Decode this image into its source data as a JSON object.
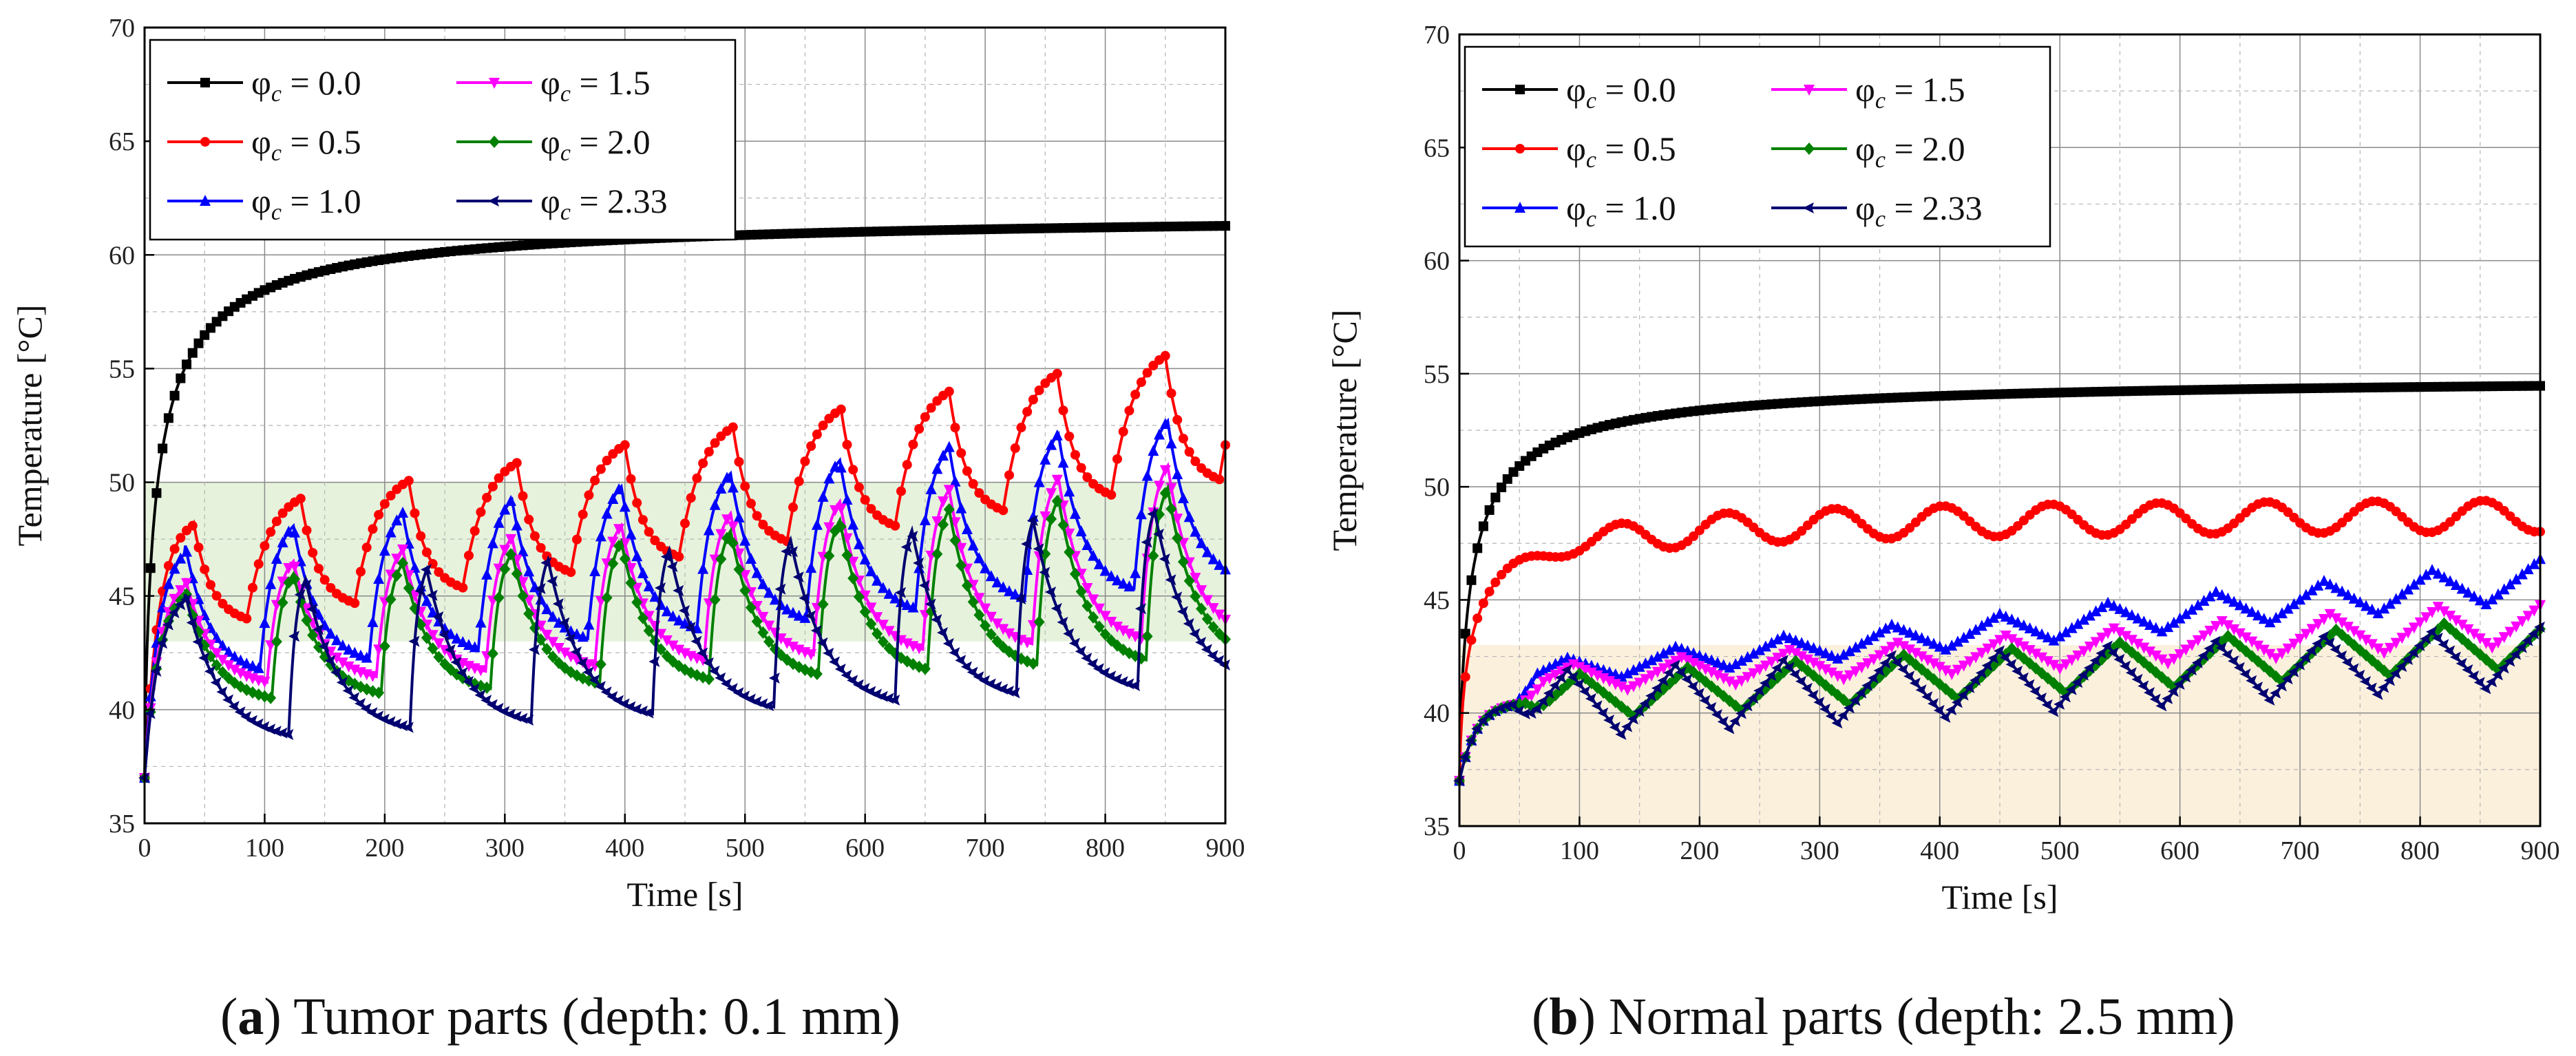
{
  "chart_data": [
    {
      "type": "line",
      "caption": {
        "letter": "a",
        "text": "Tumor parts (depth: 0.1 mm)"
      },
      "xlabel": "Time [s]",
      "ylabel": "Temperature [°C]",
      "xlim": [
        0,
        900
      ],
      "ylim": [
        35,
        70
      ],
      "x_ticks": [
        0,
        100,
        200,
        300,
        400,
        500,
        600,
        700,
        800,
        900
      ],
      "y_ticks": [
        35,
        40,
        45,
        50,
        55,
        60,
        65,
        70
      ],
      "grid": true,
      "legend_position": "top-left",
      "shaded_band": {
        "y_from": 43,
        "y_to": 50,
        "color": "#e6f2dc"
      },
      "series": [
        {
          "name": "φ = 0.0",
          "param": "0.0",
          "color": "#000000",
          "marker": "square",
          "model": {
            "kind": "continuous",
            "plateau": 62,
            "knee": 6,
            "exp": 0.78,
            "wt": 0,
            "ramp": 0
          }
        },
        {
          "name": "φ = 0.5",
          "param": "0.5",
          "color": "#ff0000",
          "marker": "circle",
          "model": {
            "kind": "pulsed",
            "period": 90,
            "on": 45,
            "t0": 40,
            "peak1": 48.5,
            "peak_end": 56,
            "valley1": 44,
            "valley_end": 50.5,
            "tau": 14
          }
        },
        {
          "name": "φ = 1.0",
          "param": "1.0",
          "color": "#0000ff",
          "marker": "triangle-up",
          "model": {
            "kind": "pulsed",
            "period": 91,
            "on": 28,
            "t0": 33,
            "peak1": 47.5,
            "peak_end": 53,
            "valley1": 41.8,
            "valley_end": 46,
            "tau": 15
          }
        },
        {
          "name": "φ = 1.5",
          "param": "1.5",
          "color": "#ff00ff",
          "marker": "triangle-down",
          "model": {
            "kind": "pulsed",
            "period": 91,
            "on": 22,
            "t0": 33,
            "peak1": 46,
            "peak_end": 51,
            "valley1": 41.2,
            "valley_end": 43.5,
            "tau": 16
          }
        },
        {
          "name": "φ = 2.0",
          "param": "2.0",
          "color": "#008000",
          "marker": "diamond",
          "model": {
            "kind": "pulsed",
            "period": 91,
            "on": 18,
            "t0": 33,
            "peak1": 45.5,
            "peak_end": 50,
            "valley1": 40.5,
            "valley_end": 42.5,
            "tau": 17
          }
        },
        {
          "name": "φ = 2.33",
          "param": "2.33",
          "color": "#000070",
          "marker": "tri-left",
          "model": {
            "kind": "pulsed",
            "period": 101,
            "on": 14,
            "t0": 33,
            "peak1": 45.3,
            "peak_end": 49,
            "valley1": 38.9,
            "valley_end": 41.5,
            "tau": 18
          }
        }
      ]
    },
    {
      "type": "line",
      "caption": {
        "letter": "b",
        "text": "Normal parts (depth: 2.5 mm)"
      },
      "xlabel": "Time [s]",
      "ylabel": "Temperature [°C]",
      "xlim": [
        0,
        900
      ],
      "ylim": [
        35,
        70
      ],
      "x_ticks": [
        0,
        100,
        200,
        300,
        400,
        500,
        600,
        700,
        800,
        900
      ],
      "y_ticks": [
        35,
        40,
        45,
        50,
        55,
        60,
        65,
        70
      ],
      "grid": true,
      "legend_position": "top-left",
      "shaded_band": {
        "y_from": 35,
        "y_to": 43,
        "color": "#fbf0dc"
      },
      "series": [
        {
          "name": "φ = 0.0",
          "param": "0.0",
          "color": "#000000",
          "marker": "square",
          "model": {
            "kind": "continuous",
            "plateau": 55,
            "knee": 6.2,
            "exp": 0.78,
            "wt": 0,
            "ramp": 0
          }
        },
        {
          "name": "φ = 0.5",
          "param": "0.5",
          "color": "#ff0000",
          "marker": "circle",
          "model": {
            "kind": "continuous",
            "plateau": 49,
            "knee": 5.8,
            "exp": 0.8,
            "wt": 0.7,
            "ramp": 0.9
          }
        },
        {
          "name": "φ = 1.0",
          "param": "1.0",
          "color": "#0000ff",
          "marker": "triangle-up",
          "model": {
            "kind": "pulsed-slow",
            "period": 90,
            "t0": 45,
            "peak_end": 46.8,
            "valley_end": 45,
            "peak1": 42.2,
            "valley1": 41.2
          }
        },
        {
          "name": "φ = 1.5",
          "param": "1.5",
          "color": "#ff00ff",
          "marker": "triangle-down",
          "model": {
            "kind": "pulsed-slow",
            "period": 90,
            "t0": 50,
            "peak_end": 45,
            "valley_end": 43,
            "peak1": 42,
            "valley1": 40.8
          }
        },
        {
          "name": "φ = 2.0",
          "param": "2.0",
          "color": "#008000",
          "marker": "diamond",
          "model": {
            "kind": "pulsed-slow",
            "period": 90,
            "t0": 55,
            "peak_end": 44.2,
            "valley_end": 42,
            "peak1": 41.6,
            "valley1": 39.6
          }
        },
        {
          "name": "φ = 2.33",
          "param": "2.33",
          "color": "#000070",
          "marker": "tri-left",
          "model": {
            "kind": "pulsed-slow",
            "period": 90,
            "t0": 45,
            "peak_end": 43.8,
            "valley_end": 41.2,
            "peak1": 41.8,
            "valley1": 38.8
          }
        }
      ]
    }
  ]
}
